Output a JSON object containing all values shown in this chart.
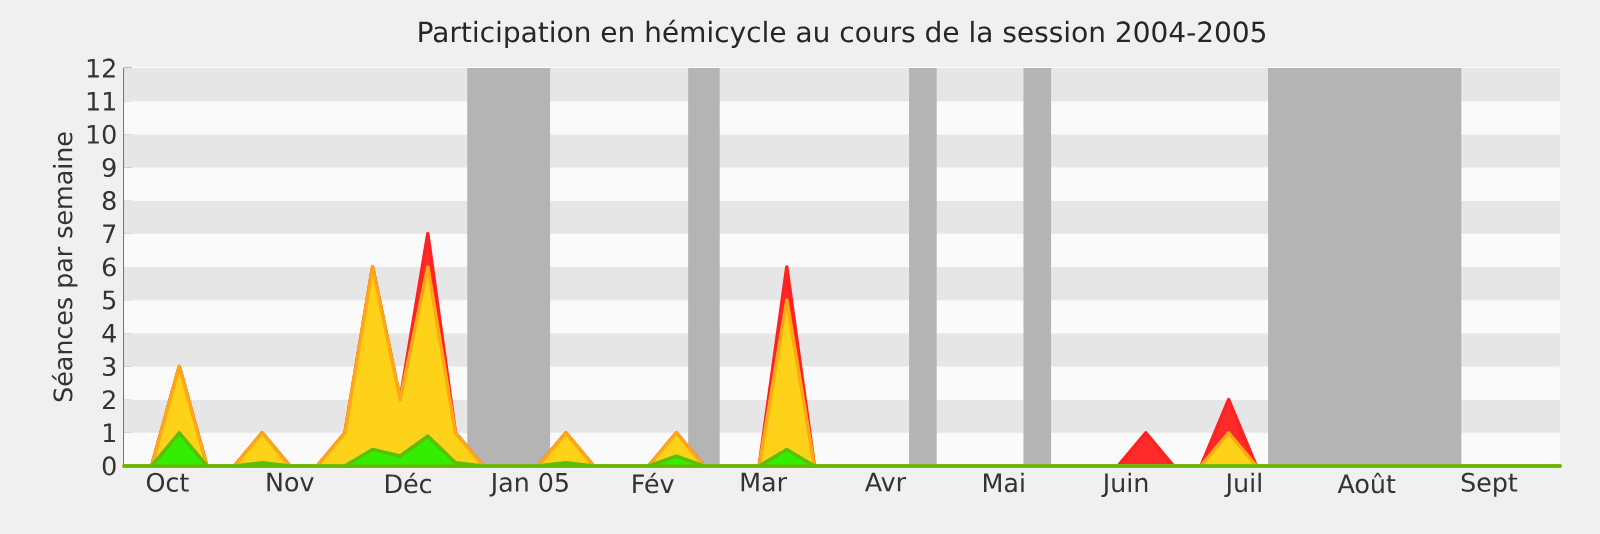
{
  "chart_data": {
    "type": "area",
    "title": "Participation en hémicycle au cours de la session 2004-2005",
    "ylabel": "Séances par semaine",
    "x": [
      "2004-09-20",
      "2004-09-27",
      "2004-10-04",
      "2004-10-11",
      "2004-10-18",
      "2004-10-25",
      "2004-11-01",
      "2004-11-08",
      "2004-11-15",
      "2004-11-22",
      "2004-11-29",
      "2004-12-06",
      "2004-12-13",
      "2004-12-20",
      "2004-12-27",
      "2005-01-03",
      "2005-01-10",
      "2005-01-17",
      "2005-01-24",
      "2005-01-31",
      "2005-02-07",
      "2005-02-14",
      "2005-02-21",
      "2005-02-28",
      "2005-03-07",
      "2005-03-14",
      "2005-03-21",
      "2005-03-28",
      "2005-04-04",
      "2005-04-11",
      "2005-04-18",
      "2005-04-25",
      "2005-05-02",
      "2005-05-09",
      "2005-05-16",
      "2005-05-23",
      "2005-05-30",
      "2005-06-06",
      "2005-06-13",
      "2005-06-20",
      "2005-06-27",
      "2005-07-04",
      "2005-07-11",
      "2005-07-18",
      "2005-07-25",
      "2005-08-01",
      "2005-08-08",
      "2005-08-15",
      "2005-08-22",
      "2005-08-29",
      "2005-09-05",
      "2005-09-12",
      "2005-09-19"
    ],
    "series": [
      {
        "color": "#ff2a2a",
        "values": [
          0,
          0,
          3,
          0,
          0,
          1,
          0,
          0,
          1,
          6,
          2,
          7,
          1,
          0,
          0,
          0,
          1,
          0,
          0,
          0,
          1,
          0,
          0,
          0,
          6,
          0,
          0,
          0,
          0,
          0,
          0,
          0,
          0,
          0,
          0,
          0,
          0,
          1,
          0,
          0,
          2,
          0,
          0,
          0,
          0,
          0,
          0,
          0,
          0,
          0,
          0,
          0,
          0
        ]
      },
      {
        "color": "#ffd21a",
        "values": [
          0,
          0,
          3,
          0,
          0,
          1,
          0,
          0,
          1,
          6,
          2,
          6,
          1,
          0,
          0,
          0,
          1,
          0,
          0,
          0,
          1,
          0,
          0,
          0,
          5,
          0,
          0,
          0,
          0,
          0,
          0,
          0,
          0,
          0,
          0,
          0,
          0,
          0,
          0,
          0,
          1,
          0,
          0,
          0,
          0,
          0,
          0,
          0,
          0,
          0,
          0,
          0,
          0
        ]
      },
      {
        "color": "#33ee00",
        "values": [
          0,
          0,
          1,
          0,
          0,
          0.1,
          0,
          0,
          0,
          0.5,
          0.3,
          0.9,
          0.1,
          0,
          0,
          0,
          0.1,
          0,
          0,
          0,
          0.3,
          0,
          0,
          0,
          0.5,
          0,
          0,
          0,
          0,
          0,
          0,
          0,
          0,
          0,
          0,
          0,
          0,
          0,
          0,
          0,
          0,
          0,
          0,
          0,
          0,
          0,
          0,
          0,
          0,
          0,
          0,
          0,
          0
        ]
      }
    ],
    "xlim": [
      "2004-09-20",
      "2005-09-19"
    ],
    "ylim": [
      0,
      12
    ],
    "xticks": [
      {
        "value": "2004-10-01",
        "label": "Oct"
      },
      {
        "value": "2004-11-01",
        "label": "Nov"
      },
      {
        "value": "2004-12-01",
        "label": "Déc"
      },
      {
        "value": "2005-01-01",
        "label": "Jan 05"
      },
      {
        "value": "2005-02-01",
        "label": "Fév"
      },
      {
        "value": "2005-03-01",
        "label": "Mar"
      },
      {
        "value": "2005-04-01",
        "label": "Avr"
      },
      {
        "value": "2005-05-01",
        "label": "Mai"
      },
      {
        "value": "2005-06-01",
        "label": "Juin"
      },
      {
        "value": "2005-07-01",
        "label": "Juil"
      },
      {
        "value": "2005-08-01",
        "label": "Août"
      },
      {
        "value": "2005-09-01",
        "label": "Sept"
      }
    ],
    "yticks": [
      0,
      1,
      2,
      3,
      4,
      5,
      6,
      7,
      8,
      9,
      10,
      11,
      12
    ],
    "grid": "y",
    "bands": [
      {
        "axis": "x",
        "from": "2004-12-16",
        "to": "2005-01-06",
        "color": "#b4b4b4"
      },
      {
        "axis": "x",
        "from": "2005-02-10",
        "to": "2005-02-18",
        "color": "#b4b4b4"
      },
      {
        "axis": "x",
        "from": "2005-04-07",
        "to": "2005-04-14",
        "color": "#b4b4b4"
      },
      {
        "axis": "x",
        "from": "2005-05-06",
        "to": "2005-05-13",
        "color": "#b4b4b4"
      },
      {
        "axis": "x",
        "from": "2005-07-07",
        "to": "2005-08-25",
        "color": "#b4b4b4"
      }
    ]
  }
}
